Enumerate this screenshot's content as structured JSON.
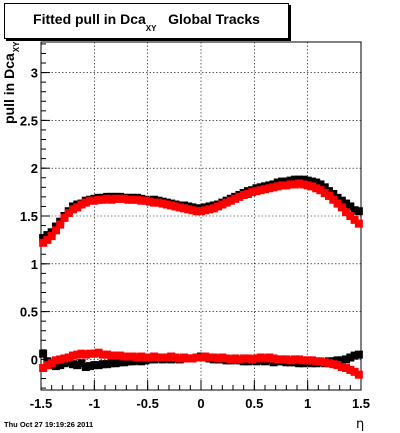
{
  "title": {
    "main": "Fitted pull in Dca",
    "subscript": "XY",
    "suffix": "Global Tracks"
  },
  "timestamp": "Thu Oct 27 19:19:26 2011",
  "chart_data": {
    "type": "scatter",
    "xlabel": "η",
    "ylabel": "pull in Dca",
    "ylabel_subscript": "XY",
    "xlim": [
      -1.5,
      1.5
    ],
    "ylim": [
      -0.32,
      3.32
    ],
    "xticks": [
      {
        "value": -1.5,
        "label": "-1.5"
      },
      {
        "value": -1,
        "label": "-1"
      },
      {
        "value": -0.5,
        "label": "-0.5"
      },
      {
        "value": 0,
        "label": "0"
      },
      {
        "value": 0.5,
        "label": "0.5"
      },
      {
        "value": 1,
        "label": "1"
      },
      {
        "value": 1.5,
        "label": "1.5"
      }
    ],
    "yticks": [
      {
        "value": 0,
        "label": "0"
      },
      {
        "value": 0.5,
        "label": "0.5"
      },
      {
        "value": 1,
        "label": "1"
      },
      {
        "value": 1.5,
        "label": "1.5"
      },
      {
        "value": 2,
        "label": "2"
      },
      {
        "value": 2.5,
        "label": "2.5"
      },
      {
        "value": 3,
        "label": "3"
      }
    ],
    "grid": true,
    "colors": {
      "black_series": "#000000",
      "red_series": "#ff0000"
    },
    "series": [
      {
        "color": "black",
        "marker": "square",
        "x": [
          -1.48,
          -1.44,
          -1.4,
          -1.36,
          -1.32,
          -1.28,
          -1.24,
          -1.2,
          -1.16,
          -1.12,
          -1.08,
          -1.04,
          -1.0,
          -0.96,
          -0.92,
          -0.88,
          -0.84,
          -0.8,
          -0.76,
          -0.72,
          -0.68,
          -0.64,
          -0.6,
          -0.56,
          -0.52,
          -0.48,
          -0.44,
          -0.4,
          -0.36,
          -0.32,
          -0.28,
          -0.24,
          -0.2,
          -0.16,
          -0.12,
          -0.08,
          -0.04,
          0.0,
          0.04,
          0.08,
          0.12,
          0.16,
          0.2,
          0.24,
          0.28,
          0.32,
          0.36,
          0.4,
          0.44,
          0.48,
          0.52,
          0.56,
          0.6,
          0.64,
          0.68,
          0.72,
          0.76,
          0.8,
          0.84,
          0.88,
          0.92,
          0.96,
          1.0,
          1.04,
          1.08,
          1.12,
          1.16,
          1.2,
          1.24,
          1.28,
          1.32,
          1.36,
          1.4,
          1.44,
          1.48
        ],
        "y": [
          1.27,
          1.3,
          1.33,
          1.39,
          1.44,
          1.5,
          1.55,
          1.6,
          1.62,
          1.63,
          1.66,
          1.67,
          1.68,
          1.69,
          1.69,
          1.7,
          1.7,
          1.7,
          1.7,
          1.69,
          1.69,
          1.69,
          1.69,
          1.68,
          1.67,
          1.66,
          1.67,
          1.66,
          1.65,
          1.64,
          1.63,
          1.62,
          1.61,
          1.61,
          1.6,
          1.59,
          1.58,
          1.58,
          1.59,
          1.6,
          1.61,
          1.62,
          1.64,
          1.66,
          1.68,
          1.7,
          1.72,
          1.74,
          1.76,
          1.77,
          1.79,
          1.8,
          1.81,
          1.82,
          1.83,
          1.85,
          1.86,
          1.86,
          1.87,
          1.88,
          1.88,
          1.88,
          1.87,
          1.86,
          1.85,
          1.83,
          1.8,
          1.76,
          1.73,
          1.69,
          1.66,
          1.63,
          1.6,
          1.56,
          1.55
        ]
      },
      {
        "color": "red",
        "marker": "square",
        "x": [
          -1.48,
          -1.44,
          -1.4,
          -1.36,
          -1.32,
          -1.28,
          -1.24,
          -1.2,
          -1.16,
          -1.12,
          -1.08,
          -1.04,
          -1.0,
          -0.96,
          -0.92,
          -0.88,
          -0.84,
          -0.8,
          -0.76,
          -0.72,
          -0.68,
          -0.64,
          -0.6,
          -0.56,
          -0.52,
          -0.48,
          -0.44,
          -0.4,
          -0.36,
          -0.32,
          -0.28,
          -0.24,
          -0.2,
          -0.16,
          -0.12,
          -0.08,
          -0.04,
          0.0,
          0.04,
          0.08,
          0.12,
          0.16,
          0.2,
          0.24,
          0.28,
          0.32,
          0.36,
          0.4,
          0.44,
          0.48,
          0.52,
          0.56,
          0.6,
          0.64,
          0.68,
          0.72,
          0.76,
          0.8,
          0.84,
          0.88,
          0.92,
          0.96,
          1.0,
          1.04,
          1.08,
          1.12,
          1.16,
          1.2,
          1.24,
          1.28,
          1.32,
          1.36,
          1.4,
          1.44,
          1.48
        ],
        "y": [
          1.22,
          1.25,
          1.29,
          1.35,
          1.41,
          1.48,
          1.53,
          1.57,
          1.59,
          1.62,
          1.64,
          1.66,
          1.66,
          1.67,
          1.67,
          1.68,
          1.67,
          1.68,
          1.68,
          1.68,
          1.67,
          1.67,
          1.67,
          1.66,
          1.66,
          1.65,
          1.64,
          1.64,
          1.63,
          1.62,
          1.61,
          1.6,
          1.59,
          1.58,
          1.57,
          1.56,
          1.55,
          1.55,
          1.56,
          1.57,
          1.58,
          1.6,
          1.62,
          1.64,
          1.66,
          1.68,
          1.7,
          1.72,
          1.73,
          1.75,
          1.76,
          1.77,
          1.78,
          1.79,
          1.8,
          1.81,
          1.82,
          1.82,
          1.83,
          1.83,
          1.84,
          1.83,
          1.82,
          1.81,
          1.79,
          1.77,
          1.74,
          1.71,
          1.67,
          1.63,
          1.59,
          1.54,
          1.5,
          1.46,
          1.42
        ]
      },
      {
        "color": "black",
        "marker": "square",
        "x": [
          -1.48,
          -1.44,
          -1.4,
          -1.36,
          -1.32,
          -1.28,
          -1.24,
          -1.2,
          -1.16,
          -1.12,
          -1.08,
          -1.04,
          -1.0,
          -0.96,
          -0.92,
          -0.88,
          -0.84,
          -0.8,
          -0.76,
          -0.72,
          -0.68,
          -0.64,
          -0.6,
          -0.56,
          -0.52,
          -0.48,
          -0.44,
          -0.4,
          -0.36,
          -0.32,
          -0.28,
          -0.24,
          -0.2,
          -0.16,
          -0.12,
          -0.08,
          -0.04,
          0.0,
          0.04,
          0.08,
          0.12,
          0.16,
          0.2,
          0.24,
          0.28,
          0.32,
          0.36,
          0.4,
          0.44,
          0.48,
          0.52,
          0.56,
          0.6,
          0.64,
          0.68,
          0.72,
          0.76,
          0.8,
          0.84,
          0.88,
          0.92,
          0.96,
          1.0,
          1.04,
          1.08,
          1.12,
          1.16,
          1.2,
          1.24,
          1.28,
          1.32,
          1.36,
          1.4,
          1.44,
          1.48
        ],
        "y": [
          0.06,
          -0.02,
          -0.06,
          -0.07,
          -0.06,
          -0.04,
          -0.03,
          -0.05,
          -0.06,
          -0.04,
          -0.08,
          -0.07,
          -0.06,
          -0.06,
          -0.05,
          -0.05,
          -0.04,
          -0.04,
          -0.03,
          -0.03,
          -0.02,
          -0.02,
          -0.01,
          -0.02,
          -0.01,
          0.0,
          0.0,
          0.01,
          0.0,
          0.01,
          0.0,
          0.01,
          0.0,
          0.01,
          0.01,
          0.01,
          0.02,
          0.03,
          0.02,
          0.01,
          0.0,
          0.0,
          0.0,
          -0.01,
          -0.01,
          0.0,
          -0.01,
          -0.02,
          -0.02,
          -0.01,
          -0.02,
          -0.01,
          -0.02,
          -0.01,
          -0.03,
          -0.02,
          -0.02,
          -0.03,
          -0.03,
          -0.03,
          -0.04,
          -0.04,
          -0.03,
          -0.04,
          -0.04,
          -0.03,
          -0.04,
          -0.02,
          -0.02,
          -0.01,
          -0.01,
          0.0,
          0.02,
          0.04,
          0.05
        ]
      },
      {
        "color": "red",
        "marker": "square",
        "x": [
          -1.48,
          -1.44,
          -1.4,
          -1.36,
          -1.32,
          -1.28,
          -1.24,
          -1.2,
          -1.16,
          -1.12,
          -1.08,
          -1.04,
          -1.0,
          -0.96,
          -0.92,
          -0.88,
          -0.84,
          -0.8,
          -0.76,
          -0.72,
          -0.68,
          -0.64,
          -0.6,
          -0.56,
          -0.52,
          -0.48,
          -0.44,
          -0.4,
          -0.36,
          -0.32,
          -0.28,
          -0.24,
          -0.2,
          -0.16,
          -0.12,
          -0.08,
          -0.04,
          0.0,
          0.04,
          0.08,
          0.12,
          0.16,
          0.2,
          0.24,
          0.28,
          0.32,
          0.36,
          0.4,
          0.44,
          0.48,
          0.52,
          0.56,
          0.6,
          0.64,
          0.68,
          0.72,
          0.76,
          0.8,
          0.84,
          0.88,
          0.92,
          0.96,
          1.0,
          1.04,
          1.08,
          1.12,
          1.16,
          1.2,
          1.24,
          1.28,
          1.32,
          1.36,
          1.4,
          1.44,
          1.48
        ],
        "y": [
          -0.09,
          -0.06,
          -0.04,
          -0.01,
          0.0,
          0.01,
          0.02,
          0.04,
          0.05,
          0.06,
          0.05,
          0.06,
          0.06,
          0.07,
          0.05,
          0.05,
          0.04,
          0.04,
          0.04,
          0.03,
          0.03,
          0.03,
          0.02,
          0.03,
          0.02,
          0.02,
          0.03,
          0.02,
          0.02,
          0.02,
          0.03,
          0.02,
          0.01,
          0.02,
          0.01,
          0.01,
          0.02,
          0.02,
          0.03,
          0.02,
          0.02,
          0.01,
          0.02,
          0.01,
          0.0,
          0.01,
          0.0,
          0.01,
          0.01,
          0.0,
          0.01,
          0.02,
          0.01,
          0.02,
          0.01,
          0.0,
          0.0,
          0.0,
          -0.01,
          0.0,
          0.0,
          -0.01,
          -0.01,
          -0.01,
          -0.02,
          -0.02,
          -0.03,
          -0.04,
          -0.05,
          -0.06,
          -0.08,
          -0.09,
          -0.11,
          -0.13,
          -0.16
        ]
      }
    ]
  }
}
